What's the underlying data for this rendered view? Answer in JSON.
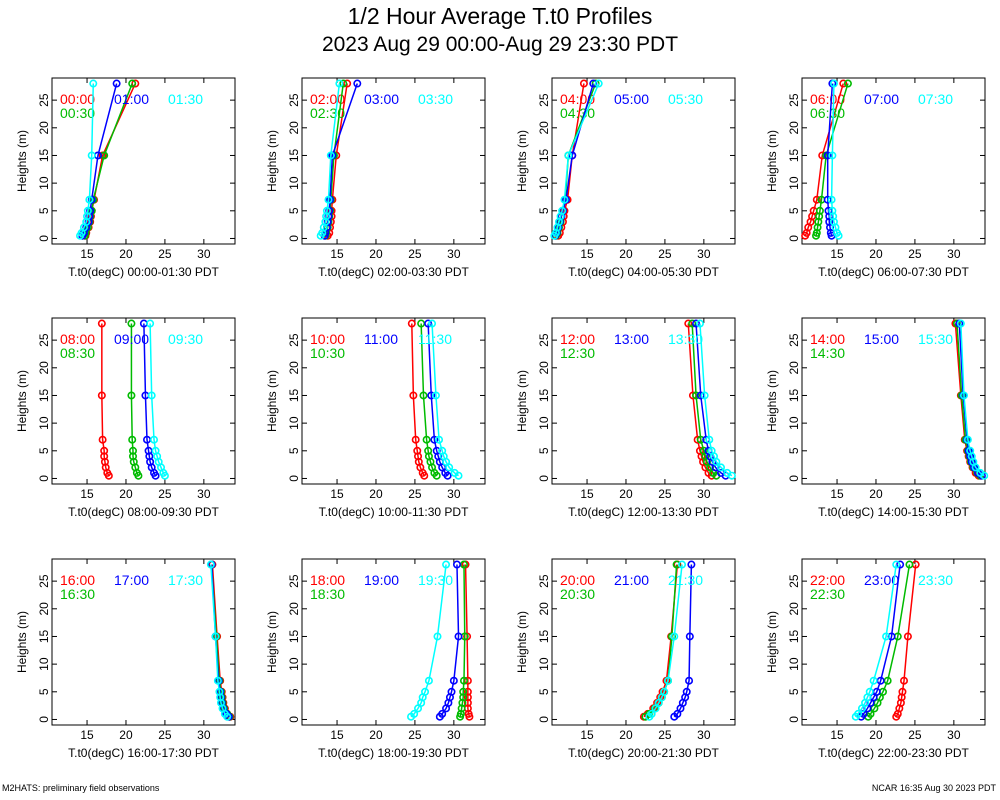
{
  "header": {
    "title": "1/2 Hour Average T.t0 Profiles",
    "subtitle": "2023 Aug 29 00:00-Aug 29 23:30 PDT"
  },
  "footer": {
    "left": "M2HATS: preliminary field observations",
    "right": "NCAR 16:35 Aug 30 2023 PDT"
  },
  "colors": {
    "series1": "#ff0000",
    "series2": "#00bb00",
    "series3": "#0000ff",
    "series4": "#00ffff"
  },
  "chart_data": [
    {
      "type": "line",
      "ylabel": "Heights (m)",
      "xlabel": "T.t0(degC) 00:00-01:30 PDT",
      "xlim": [
        10.5,
        34
      ],
      "ylim": [
        -1,
        29
      ],
      "xticks": [
        15,
        20,
        25,
        30
      ],
      "yticks": [
        0,
        5,
        10,
        15,
        20,
        25
      ],
      "heights": [
        0.5,
        1,
        2,
        3,
        4,
        5,
        7,
        15,
        28
      ],
      "series": [
        {
          "name": "00:00",
          "color": "#ff0000",
          "x": [
            14.8,
            14.9,
            15.2,
            15.4,
            15.5,
            15.6,
            15.9,
            17.0,
            21.2
          ]
        },
        {
          "name": "00:30",
          "color": "#00bb00",
          "x": [
            14.7,
            14.8,
            15.1,
            15.3,
            15.4,
            15.6,
            15.8,
            17.2,
            20.8
          ]
        },
        {
          "name": "01:00",
          "color": "#0000ff",
          "x": [
            14.4,
            14.6,
            14.9,
            15.2,
            15.3,
            15.4,
            15.6,
            16.4,
            18.8
          ]
        },
        {
          "name": "01:30",
          "color": "#00ffff",
          "x": [
            14.1,
            14.3,
            14.6,
            14.9,
            15.0,
            15.1,
            15.3,
            15.6,
            15.8
          ]
        }
      ]
    },
    {
      "type": "line",
      "ylabel": "Heights (m)",
      "xlabel": "T.t0(degC) 02:00-03:30 PDT",
      "xlim": [
        10.5,
        34
      ],
      "ylim": [
        -1,
        29
      ],
      "xticks": [
        15,
        20,
        25,
        30
      ],
      "yticks": [
        0,
        5,
        10,
        15,
        20,
        25
      ],
      "heights": [
        0.5,
        1,
        2,
        3,
        4,
        5,
        7,
        15,
        28
      ],
      "series": [
        {
          "name": "02:00",
          "color": "#ff0000",
          "x": [
            13.8,
            14.0,
            14.1,
            14.2,
            14.3,
            14.3,
            14.4,
            14.9,
            16.3
          ]
        },
        {
          "name": "02:30",
          "color": "#00bb00",
          "x": [
            13.5,
            13.6,
            13.8,
            13.9,
            14.0,
            14.1,
            14.2,
            14.6,
            15.8
          ]
        },
        {
          "name": "03:00",
          "color": "#0000ff",
          "x": [
            13.4,
            13.5,
            13.7,
            13.8,
            13.9,
            14.0,
            14.1,
            14.4,
            17.6
          ]
        },
        {
          "name": "03:30",
          "color": "#00ffff",
          "x": [
            12.9,
            13.1,
            13.3,
            13.5,
            13.6,
            13.7,
            13.9,
            14.2,
            15.3
          ]
        }
      ]
    },
    {
      "type": "line",
      "ylabel": "Heights (m)",
      "xlabel": "T.t0(degC) 04:00-05:30 PDT",
      "xlim": [
        10.5,
        34
      ],
      "ylim": [
        -1,
        29
      ],
      "xticks": [
        15,
        20,
        25,
        30
      ],
      "yticks": [
        0,
        5,
        10,
        15,
        20,
        25
      ],
      "heights": [
        0.5,
        1,
        2,
        3,
        4,
        5,
        7,
        15,
        28
      ],
      "series": [
        {
          "name": "04:00",
          "color": "#ff0000",
          "x": [
            11.3,
            11.5,
            11.7,
            11.9,
            12.0,
            12.1,
            12.5,
            13.1,
            14.6
          ]
        },
        {
          "name": "04:30",
          "color": "#00bb00",
          "x": [
            11.0,
            11.2,
            11.4,
            11.6,
            11.7,
            11.9,
            12.2,
            12.6,
            16.1
          ]
        },
        {
          "name": "05:00",
          "color": "#0000ff",
          "x": [
            10.9,
            11.1,
            11.3,
            11.5,
            11.7,
            11.9,
            12.3,
            13.1,
            15.8
          ]
        },
        {
          "name": "05:30",
          "color": "#00ffff",
          "x": [
            10.8,
            11.0,
            11.2,
            11.4,
            11.6,
            11.8,
            12.1,
            12.6,
            16.5
          ]
        }
      ]
    },
    {
      "type": "line",
      "ylabel": "Heights (m)",
      "xlabel": "T.t0(degC) 06:00-07:30 PDT",
      "xlim": [
        10.5,
        34
      ],
      "ylim": [
        -1,
        29
      ],
      "xticks": [
        15,
        20,
        25,
        30
      ],
      "yticks": [
        0,
        5,
        10,
        15,
        20,
        25
      ],
      "heights": [
        0.5,
        1,
        2,
        3,
        4,
        5,
        7,
        15,
        28
      ],
      "series": [
        {
          "name": "06:00",
          "color": "#ff0000",
          "x": [
            10.9,
            11.1,
            11.3,
            11.6,
            11.8,
            12.0,
            12.4,
            13.1,
            15.8
          ]
        },
        {
          "name": "06:30",
          "color": "#00bb00",
          "x": [
            12.3,
            12.4,
            12.5,
            12.6,
            12.7,
            12.8,
            13.0,
            13.6,
            16.4
          ]
        },
        {
          "name": "07:00",
          "color": "#0000ff",
          "x": [
            14.3,
            14.2,
            14.1,
            14.0,
            14.0,
            13.9,
            13.8,
            13.8,
            14.4
          ]
        },
        {
          "name": "07:30",
          "color": "#00ffff",
          "x": [
            15.2,
            15.0,
            14.8,
            14.6,
            14.5,
            14.4,
            14.3,
            14.4,
            14.6
          ]
        }
      ]
    },
    {
      "type": "line",
      "ylabel": "Heights (m)",
      "xlabel": "T.t0(degC) 08:00-09:30 PDT",
      "xlim": [
        10.5,
        34
      ],
      "ylim": [
        -1,
        29
      ],
      "xticks": [
        15,
        20,
        25,
        30
      ],
      "yticks": [
        0,
        5,
        10,
        15,
        20,
        25
      ],
      "heights": [
        0.5,
        1,
        2,
        3,
        4,
        5,
        7,
        15,
        28
      ],
      "series": [
        {
          "name": "08:00",
          "color": "#ff0000",
          "x": [
            17.8,
            17.6,
            17.4,
            17.3,
            17.2,
            17.2,
            17.0,
            16.9,
            16.9
          ]
        },
        {
          "name": "08:30",
          "color": "#00bb00",
          "x": [
            21.6,
            21.4,
            21.2,
            21.0,
            20.9,
            20.9,
            20.8,
            20.7,
            20.7
          ]
        },
        {
          "name": "09:00",
          "color": "#0000ff",
          "x": [
            23.8,
            23.6,
            23.3,
            23.1,
            23.0,
            22.9,
            22.7,
            22.5,
            22.3
          ]
        },
        {
          "name": "09:30",
          "color": "#00ffff",
          "x": [
            25.0,
            24.8,
            24.5,
            24.2,
            24.0,
            23.8,
            23.6,
            23.3,
            23.1
          ]
        }
      ]
    },
    {
      "type": "line",
      "ylabel": "Heights (m)",
      "xlabel": "T.t0(degC) 10:00-11:30 PDT",
      "xlim": [
        10.5,
        34
      ],
      "ylim": [
        -1,
        29
      ],
      "xticks": [
        15,
        20,
        25,
        30
      ],
      "yticks": [
        0,
        5,
        10,
        15,
        20,
        25
      ],
      "heights": [
        0.5,
        1,
        2,
        3,
        4,
        5,
        7,
        15,
        28
      ],
      "series": [
        {
          "name": "10:00",
          "color": "#ff0000",
          "x": [
            26.2,
            26.0,
            25.7,
            25.5,
            25.4,
            25.3,
            25.1,
            24.8,
            24.6
          ]
        },
        {
          "name": "10:30",
          "color": "#00bb00",
          "x": [
            27.8,
            27.5,
            27.2,
            27.0,
            26.8,
            26.7,
            26.5,
            26.1,
            25.8
          ]
        },
        {
          "name": "11:00",
          "color": "#0000ff",
          "x": [
            29.2,
            28.9,
            28.5,
            28.2,
            28.0,
            27.8,
            27.5,
            27.1,
            26.7
          ]
        },
        {
          "name": "11:30",
          "color": "#00ffff",
          "x": [
            30.6,
            30.1,
            29.4,
            29.0,
            28.7,
            28.5,
            28.1,
            27.7,
            27.2
          ]
        }
      ]
    },
    {
      "type": "line",
      "ylabel": "Heights (m)",
      "xlabel": "T.t0(degC) 12:00-13:30 PDT",
      "xlim": [
        10.5,
        34
      ],
      "ylim": [
        -1,
        29
      ],
      "xticks": [
        15,
        20,
        25,
        30
      ],
      "yticks": [
        0,
        5,
        10,
        15,
        20,
        25
      ],
      "heights": [
        0.5,
        1,
        2,
        3,
        4,
        5,
        7,
        15,
        28
      ],
      "series": [
        {
          "name": "12:00",
          "color": "#ff0000",
          "x": [
            31.0,
            30.6,
            30.2,
            29.9,
            29.7,
            29.5,
            29.2,
            28.6,
            28.0
          ]
        },
        {
          "name": "12:30",
          "color": "#00bb00",
          "x": [
            31.6,
            31.2,
            30.8,
            30.4,
            30.2,
            30.0,
            29.6,
            29.0,
            28.5
          ]
        },
        {
          "name": "13:00",
          "color": "#0000ff",
          "x": [
            32.8,
            32.2,
            31.5,
            31.1,
            30.8,
            30.6,
            30.3,
            29.6,
            29.0
          ]
        },
        {
          "name": "13:30",
          "color": "#00ffff",
          "x": [
            33.6,
            33.0,
            32.2,
            31.6,
            31.3,
            31.0,
            30.7,
            30.1,
            29.5
          ]
        }
      ]
    },
    {
      "type": "line",
      "ylabel": "Heights (m)",
      "xlabel": "T.t0(degC) 14:00-15:30 PDT",
      "xlim": [
        10.5,
        34
      ],
      "ylim": [
        -1,
        29
      ],
      "xticks": [
        15,
        20,
        25,
        30
      ],
      "yticks": [
        0,
        5,
        10,
        15,
        20,
        25
      ],
      "heights": [
        0.5,
        1,
        2,
        3,
        4,
        5,
        7,
        15,
        28
      ],
      "series": [
        {
          "name": "14:00",
          "color": "#ff0000",
          "x": [
            33.2,
            32.8,
            32.4,
            32.1,
            31.9,
            31.7,
            31.4,
            30.9,
            30.2
          ]
        },
        {
          "name": "14:30",
          "color": "#00bb00",
          "x": [
            33.4,
            33.0,
            32.5,
            32.2,
            32.0,
            31.8,
            31.5,
            31.0,
            30.4
          ]
        },
        {
          "name": "15:00",
          "color": "#0000ff",
          "x": [
            33.6,
            33.1,
            32.6,
            32.3,
            32.1,
            31.9,
            31.7,
            31.2,
            30.7
          ]
        },
        {
          "name": "15:30",
          "color": "#00ffff",
          "x": [
            33.9,
            33.4,
            32.8,
            32.5,
            32.3,
            32.1,
            31.8,
            31.3,
            30.9
          ]
        }
      ]
    },
    {
      "type": "line",
      "ylabel": "Heights (m)",
      "xlabel": "T.t0(degC) 16:00-17:30 PDT",
      "xlim": [
        10.5,
        34
      ],
      "ylim": [
        -1,
        29
      ],
      "xticks": [
        15,
        20,
        25,
        30
      ],
      "yticks": [
        0,
        5,
        10,
        15,
        20,
        25
      ],
      "heights": [
        0.5,
        1,
        2,
        3,
        4,
        5,
        7,
        15,
        28
      ],
      "series": [
        {
          "name": "16:00",
          "color": "#ff0000",
          "x": [
            33.4,
            33.0,
            32.7,
            32.5,
            32.4,
            32.3,
            32.1,
            31.7,
            31.1
          ]
        },
        {
          "name": "16:30",
          "color": "#00bb00",
          "x": [
            33.3,
            33.0,
            32.6,
            32.4,
            32.3,
            32.2,
            32.0,
            31.6,
            31.0
          ]
        },
        {
          "name": "17:00",
          "color": "#0000ff",
          "x": [
            33.2,
            32.9,
            32.5,
            32.3,
            32.2,
            32.1,
            31.9,
            31.5,
            31.0
          ]
        },
        {
          "name": "17:30",
          "color": "#00ffff",
          "x": [
            33.0,
            32.7,
            32.4,
            32.2,
            32.1,
            32.0,
            31.8,
            31.5,
            30.9
          ]
        }
      ]
    },
    {
      "type": "line",
      "ylabel": "Heights (m)",
      "xlabel": "T.t0(degC) 18:00-19:30 PDT",
      "xlim": [
        10.5,
        34
      ],
      "ylim": [
        -1,
        29
      ],
      "xticks": [
        15,
        20,
        25,
        30
      ],
      "yticks": [
        0,
        5,
        10,
        15,
        20,
        25
      ],
      "heights": [
        0.5,
        1,
        2,
        3,
        4,
        5,
        7,
        15,
        28
      ],
      "series": [
        {
          "name": "18:00",
          "color": "#ff0000",
          "x": [
            32.0,
            31.9,
            31.8,
            31.8,
            31.8,
            31.8,
            31.8,
            31.7,
            31.5
          ]
        },
        {
          "name": "18:30",
          "color": "#00bb00",
          "x": [
            30.8,
            30.9,
            31.0,
            31.1,
            31.2,
            31.2,
            31.3,
            31.4,
            31.3
          ]
        },
        {
          "name": "19:00",
          "color": "#0000ff",
          "x": [
            28.2,
            28.5,
            29.0,
            29.3,
            29.5,
            29.7,
            30.0,
            30.6,
            30.4
          ]
        },
        {
          "name": "19:30",
          "color": "#00ffff",
          "x": [
            24.5,
            24.9,
            25.4,
            25.8,
            26.0,
            26.3,
            26.8,
            27.9,
            29.0
          ]
        }
      ]
    },
    {
      "type": "line",
      "ylabel": "Heights (m)",
      "xlabel": "T.t0(degC) 20:00-21:30 PDT",
      "xlim": [
        10.5,
        34
      ],
      "ylim": [
        -1,
        29
      ],
      "xticks": [
        15,
        20,
        25,
        30
      ],
      "yticks": [
        0,
        5,
        10,
        15,
        20,
        25
      ],
      "heights": [
        0.5,
        1,
        2,
        3,
        4,
        5,
        7,
        15,
        28
      ],
      "series": [
        {
          "name": "20:00",
          "color": "#ff0000",
          "x": [
            22.3,
            22.8,
            23.5,
            24.0,
            24.4,
            24.7,
            25.2,
            25.8,
            26.6
          ]
        },
        {
          "name": "20:30",
          "color": "#00bb00",
          "x": [
            22.5,
            23.0,
            23.7,
            24.2,
            24.6,
            24.9,
            25.4,
            25.9,
            26.5
          ]
        },
        {
          "name": "21:00",
          "color": "#0000ff",
          "x": [
            26.2,
            26.6,
            27.0,
            27.3,
            27.6,
            27.8,
            28.1,
            28.2,
            28.4
          ]
        },
        {
          "name": "21:30",
          "color": "#00ffff",
          "x": [
            23.0,
            23.3,
            23.8,
            24.2,
            24.6,
            24.9,
            25.4,
            26.2,
            27.2
          ]
        }
      ]
    },
    {
      "type": "line",
      "ylabel": "Heights (m)",
      "xlabel": "T.t0(degC) 22:00-23:30 PDT",
      "xlim": [
        10.5,
        34
      ],
      "ylim": [
        -1,
        29
      ],
      "xticks": [
        15,
        20,
        25,
        30
      ],
      "yticks": [
        0,
        5,
        10,
        15,
        20,
        25
      ],
      "heights": [
        0.5,
        1,
        2,
        3,
        4,
        5,
        7,
        15,
        28
      ],
      "series": [
        {
          "name": "22:00",
          "color": "#ff0000",
          "x": [
            22.6,
            22.8,
            23.0,
            23.2,
            23.3,
            23.4,
            23.6,
            24.1,
            25.1
          ]
        },
        {
          "name": "22:30",
          "color": "#00bb00",
          "x": [
            19.0,
            19.3,
            19.8,
            20.2,
            20.5,
            20.9,
            21.5,
            22.8,
            24.3
          ]
        },
        {
          "name": "23:00",
          "color": "#0000ff",
          "x": [
            18.1,
            18.4,
            18.9,
            19.3,
            19.7,
            20.1,
            20.6,
            22.0,
            23.1
          ]
        },
        {
          "name": "23:30",
          "color": "#00ffff",
          "x": [
            17.4,
            17.7,
            18.2,
            18.6,
            18.9,
            19.2,
            19.7,
            21.3,
            22.6
          ]
        }
      ]
    }
  ]
}
